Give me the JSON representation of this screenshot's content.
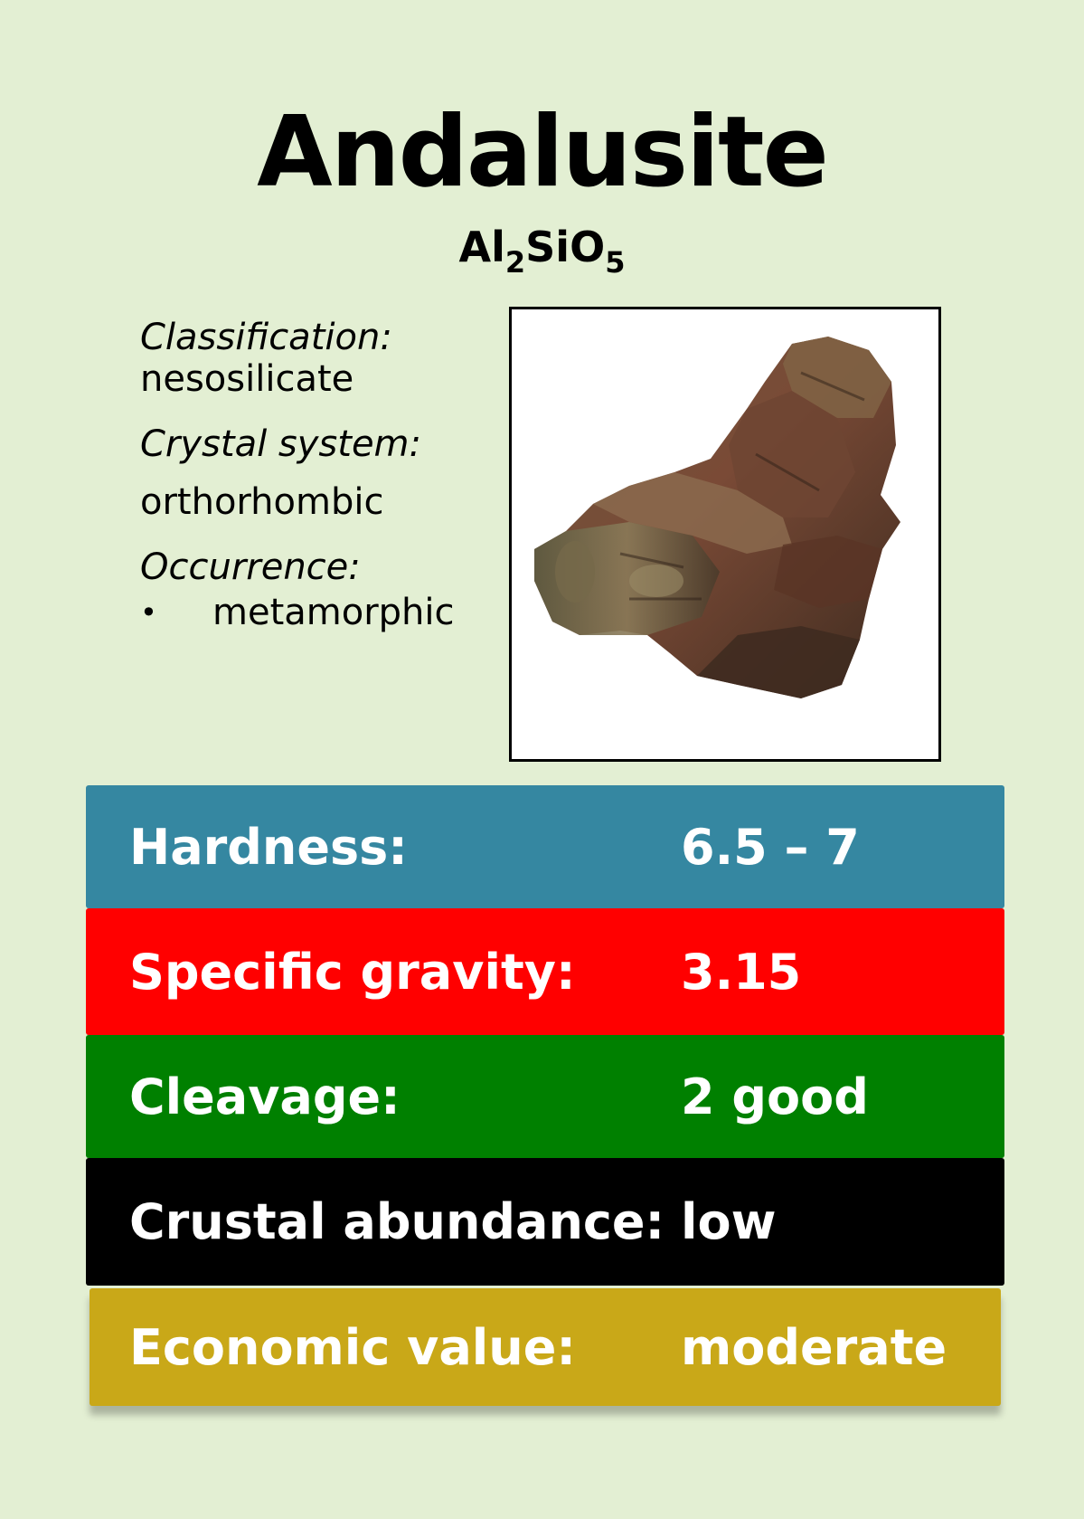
{
  "mineral": {
    "name": "Andalusite",
    "formula": {
      "el1": "Al",
      "sub1": "2",
      "el2": "SiO",
      "sub2": "5"
    }
  },
  "details": {
    "classification_label": "Classification:",
    "classification_value": "nesosilicate",
    "crystal_label": "Crystal system:",
    "crystal_value": "orthorhombic",
    "occurrence_label": "Occurrence:",
    "occurrence_bullet": "•",
    "occurrence_items": [
      "metamorphic"
    ]
  },
  "properties": [
    {
      "label": "Hardness:",
      "value": "6.5 – 7",
      "color": "#3587a1"
    },
    {
      "label": "Specific gravity:",
      "value": "3.15",
      "color": "#ff0000"
    },
    {
      "label": "Cleavage:",
      "value": "2 good",
      "color": "#008000"
    },
    {
      "label": "Crustal abundance:",
      "value": "low",
      "color": "#000000"
    },
    {
      "label": "Economic value:",
      "value": "moderate",
      "color": "#c9a818"
    }
  ],
  "colors": {
    "background": "#e3efd3"
  }
}
